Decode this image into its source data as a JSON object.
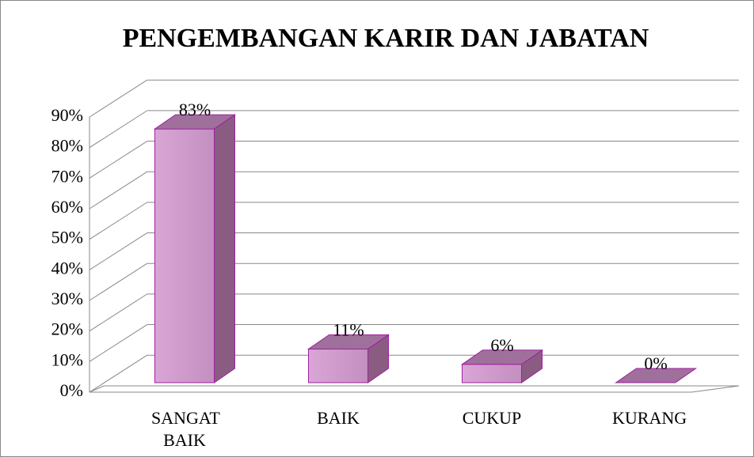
{
  "chart_data": {
    "type": "bar3d",
    "title": "PENGEMBANGAN KARIR DAN JABATAN",
    "categories": [
      "SANGAT BAIK",
      "BAIK",
      "CUKUP",
      "KURANG"
    ],
    "values": [
      83,
      11,
      6,
      0
    ],
    "value_labels": [
      "83%",
      "11%",
      "6%",
      "0%"
    ],
    "color": "#cc99cc",
    "ylim": [
      0,
      90
    ],
    "yticks": [
      {
        "value": 0,
        "label": "0%"
      },
      {
        "value": 10,
        "label": "10%"
      },
      {
        "value": 20,
        "label": "20%"
      },
      {
        "value": 30,
        "label": "30%"
      },
      {
        "value": 40,
        "label": "40%"
      },
      {
        "value": 50,
        "label": "50%"
      },
      {
        "value": 60,
        "label": "60%"
      },
      {
        "value": 70,
        "label": "70%"
      },
      {
        "value": 80,
        "label": "80%"
      },
      {
        "value": 90,
        "label": "90%"
      }
    ],
    "grid": true
  }
}
